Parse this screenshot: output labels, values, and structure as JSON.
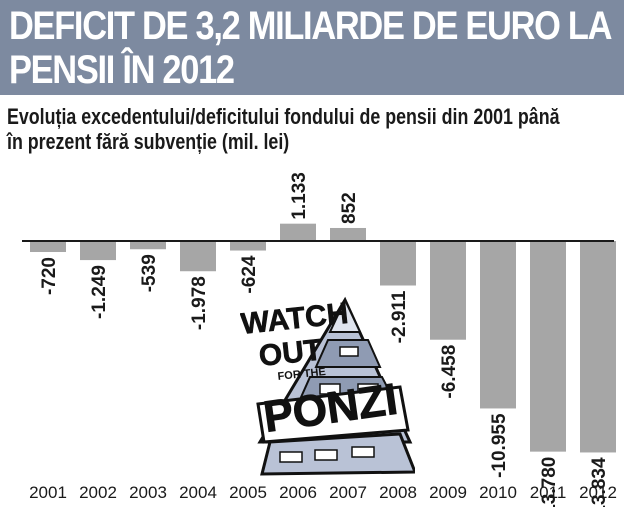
{
  "header": {
    "title": "DEFICIT DE 3,2 MILIARDE DE EURO LA PENSII ÎN 2012",
    "subtitle": "Evoluția excedentului/deficitului fondului de pensii din 2001 până în prezent fără subvenție (mil. lei)"
  },
  "logo": {
    "words": [
      "WATCH",
      "OUT",
      "FOR THE",
      "PONZI"
    ]
  },
  "colors": {
    "banner": "#7d8aa0",
    "bar": "#a6a6a6",
    "axis": "#1a1a1a"
  },
  "chart_data": {
    "type": "bar",
    "title": "Evoluția excedentului/deficitului fondului de pensii din 2001 până în prezent fără subvenție (mil. lei)",
    "categories": [
      "2001",
      "2002",
      "2003",
      "2004",
      "2005",
      "2006",
      "2007",
      "2008",
      "2009",
      "2010",
      "2011",
      "2012"
    ],
    "values": [
      -720,
      -1249,
      -539,
      -1978,
      -624,
      1133,
      852,
      -2911,
      -6458,
      -10955,
      -13780,
      -13834
    ],
    "labels": [
      "-720",
      "-1.249",
      "-539",
      "-1.978",
      "-624",
      "1.133",
      "852",
      "-2.911",
      "-6.458",
      "-10.955",
      "-13.780",
      "-13.834"
    ],
    "xlabel": "",
    "ylabel": "",
    "grid": false
  }
}
